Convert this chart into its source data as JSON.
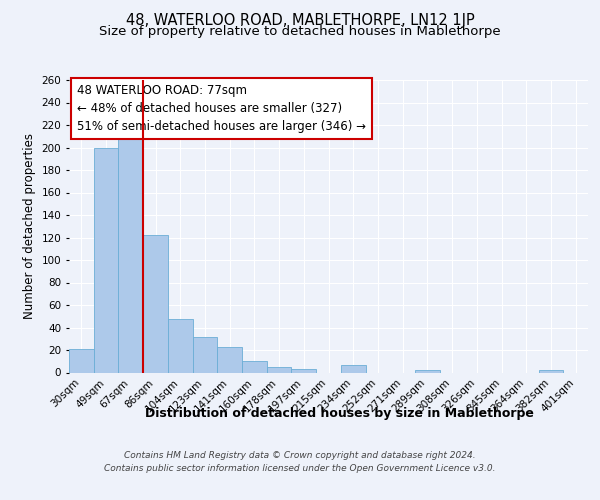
{
  "title": "48, WATERLOO ROAD, MABLETHORPE, LN12 1JP",
  "subtitle": "Size of property relative to detached houses in Mablethorpe",
  "xlabel": "Distribution of detached houses by size in Mablethorpe",
  "ylabel": "Number of detached properties",
  "bar_labels": [
    "30sqm",
    "49sqm",
    "67sqm",
    "86sqm",
    "104sqm",
    "123sqm",
    "141sqm",
    "160sqm",
    "178sqm",
    "197sqm",
    "215sqm",
    "234sqm",
    "252sqm",
    "271sqm",
    "289sqm",
    "308sqm",
    "326sqm",
    "345sqm",
    "364sqm",
    "382sqm",
    "401sqm"
  ],
  "bar_values": [
    21,
    200,
    215,
    122,
    48,
    32,
    23,
    10,
    5,
    3,
    0,
    7,
    0,
    0,
    2,
    0,
    0,
    0,
    0,
    2,
    0
  ],
  "bar_color": "#adc9ea",
  "bar_edge_color": "#6baed6",
  "vline_x_idx": 2,
  "vline_color": "#cc0000",
  "ylim": [
    0,
    260
  ],
  "yticks": [
    0,
    20,
    40,
    60,
    80,
    100,
    120,
    140,
    160,
    180,
    200,
    220,
    240,
    260
  ],
  "annotation_title": "48 WATERLOO ROAD: 77sqm",
  "annotation_line1": "← 48% of detached houses are smaller (327)",
  "annotation_line2": "51% of semi-detached houses are larger (346) →",
  "annotation_box_color": "#ffffff",
  "annotation_border_color": "#cc0000",
  "footer_line1": "Contains HM Land Registry data © Crown copyright and database right 2024.",
  "footer_line2": "Contains public sector information licensed under the Open Government Licence v3.0.",
  "background_color": "#eef2fa",
  "grid_color": "#ffffff",
  "title_fontsize": 10.5,
  "subtitle_fontsize": 9.5,
  "xlabel_fontsize": 9,
  "ylabel_fontsize": 8.5,
  "tick_fontsize": 7.5,
  "annotation_fontsize": 8.5,
  "footer_fontsize": 6.5
}
